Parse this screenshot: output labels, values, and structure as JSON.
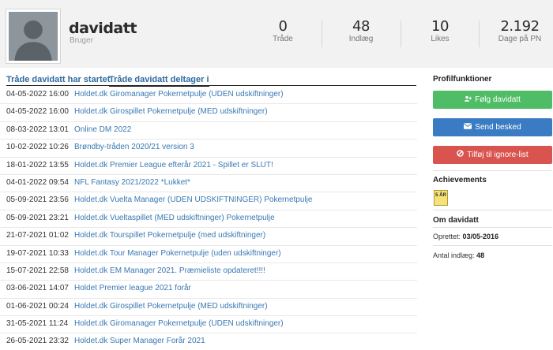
{
  "profile": {
    "username": "davidatt",
    "role": "Bruger",
    "stats": [
      {
        "value": "0",
        "label": "Tråde"
      },
      {
        "value": "48",
        "label": "Indlæg"
      },
      {
        "value": "10",
        "label": "Likes"
      },
      {
        "value": "2.192",
        "label": "Dage på PN"
      }
    ]
  },
  "tabs": [
    {
      "label": "Tråde davidatt har startet",
      "active": false
    },
    {
      "label": "Tråde davidatt deltager i",
      "active": true
    }
  ],
  "threads": [
    {
      "date": "04-05-2022 16:00",
      "title": "Holdet.dk Giromanager Pokernetpulje (UDEN udskiftninger)"
    },
    {
      "date": "04-05-2022 16:00",
      "title": "Holdet.dk Girospillet Pokernetpulje (MED udskiftninger)"
    },
    {
      "date": "08-03-2022 13:01",
      "title": "Online DM 2022"
    },
    {
      "date": "10-02-2022 10:26",
      "title": "Brøndby-tråden 2020/21 version 3"
    },
    {
      "date": "18-01-2022 13:55",
      "title": "Holdet.dk Premier League efterår 2021 - Spillet er SLUT!"
    },
    {
      "date": "04-01-2022 09:54",
      "title": "NFL Fantasy 2021/2022 *Lukket*"
    },
    {
      "date": "05-09-2021 23:56",
      "title": "Holdet.dk Vuelta Manager (UDEN UDSKIFTNINGER) Pokernetpulje"
    },
    {
      "date": "05-09-2021 23:21",
      "title": "Holdet.dk Vueltaspillet (MED udskiftninger) Pokernetpulje"
    },
    {
      "date": "21-07-2021 01:02",
      "title": "Holdet.dk Tourspillet Pokernetpulje (med udskiftninger)"
    },
    {
      "date": "19-07-2021 10:33",
      "title": "Holdet.dk Tour Manager Pokernetpulje (uden udskiftninger)"
    },
    {
      "date": "15-07-2021 22:58",
      "title": "Holdet.dk EM Manager 2021. Præmieliste opdateret!!!!"
    },
    {
      "date": "03-06-2021 14:07",
      "title": "Holdet Premier league 2021 forår"
    },
    {
      "date": "01-06-2021 00:24",
      "title": "Holdet.dk Girospillet Pokernetpulje (MED udskiftninger)"
    },
    {
      "date": "31-05-2021 11:24",
      "title": "Holdet.dk Giromanager Pokernetpulje (UDEN udskiftninger)"
    },
    {
      "date": "26-05-2021 23:32",
      "title": "Holdet.dk Super Manager Forår 2021"
    }
  ],
  "sidebar": {
    "functions_title": "Profilfunktioner",
    "follow_label": "Følg davidatt",
    "message_label": "Send besked",
    "ignore_label": "Tilføj til ignore-list",
    "achievements_title": "Achievements",
    "badge_text": "5 ÅR",
    "about_title": "Om davidatt",
    "created_label": "Oprettet:",
    "created_value": "03/05-2016",
    "posts_label": "Antal indlæg:",
    "posts_value": "48"
  },
  "icons": {
    "follow": "user-plus-icon",
    "message": "envelope-icon",
    "ignore": "ban-icon"
  },
  "colors": {
    "link": "#3a78b3",
    "follow_button": "#4ebd66",
    "message_button": "#3a7cc3",
    "ignore_button": "#d9534f",
    "header_bg": "#f2f2f2"
  }
}
